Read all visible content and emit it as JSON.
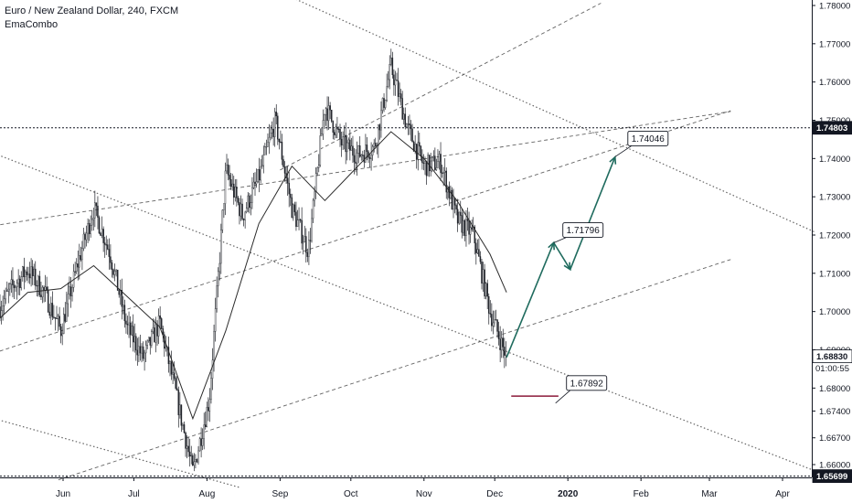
{
  "header": {
    "symbol_title": "Euro / New Zealand Dollar, 240, FXCM",
    "indicator": "EmaCombo"
  },
  "colors": {
    "price_candles": "#1f2229",
    "ema_line": "#2b2b2b",
    "trend_lines": "#4a4a4a",
    "forecast_arrow": "#1f6b5e",
    "target_line": "#8b1a3a",
    "axis_text": "#131722",
    "label_bg_dark": "#131722",
    "label_text_light": "#ffffff"
  },
  "chart_data": {
    "type": "line",
    "title": "Euro / New Zealand Dollar, 240, FXCM",
    "xlabel": "",
    "ylabel": "",
    "x_tick_labels": [
      "Jun",
      "Jul",
      "Aug",
      "Sep",
      "Oct",
      "Nov",
      "Dec",
      "2020",
      "Feb",
      "Mar",
      "Apr"
    ],
    "y_tick_labels": [
      "1.78000",
      "1.77000",
      "1.76000",
      "1.75000",
      "1.74000",
      "1.73000",
      "1.72000",
      "1.71000",
      "1.70000",
      "1.69000",
      "1.68000",
      "1.67400",
      "1.66700",
      "1.66000"
    ],
    "y_ticks": [
      1.78,
      1.77,
      1.76,
      1.75,
      1.74,
      1.73,
      1.72,
      1.71,
      1.7,
      1.69,
      1.68,
      1.674,
      1.667,
      1.66
    ],
    "ylim": [
      1.6545,
      1.7815
    ],
    "grid": false,
    "price_labels": {
      "horizontal_level": "1.74803",
      "current_price": "1.68830",
      "countdown": "01:00:55",
      "low_level": "1.65699"
    },
    "horizontal_levels": [
      1.74803,
      1.65699
    ],
    "series": [
      {
        "name": "",
        "x": [
          "2019-05-03",
          "2019-05-10",
          "2019-05-17",
          "2019-05-24",
          "2019-05-31",
          "2019-06-07",
          "2019-06-14",
          "2019-06-21",
          "2019-06-28",
          "2019-07-05",
          "2019-07-12",
          "2019-07-19",
          "2019-07-26",
          "2019-08-02",
          "2019-08-09",
          "2019-08-16",
          "2019-08-23",
          "2019-08-30",
          "2019-09-06",
          "2019-09-13",
          "2019-09-20",
          "2019-09-27",
          "2019-10-04",
          "2019-10-11",
          "2019-10-18",
          "2019-10-25",
          "2019-11-01",
          "2019-11-08",
          "2019-11-15",
          "2019-11-22",
          "2019-11-29",
          "2019-12-06"
        ],
        "values": [
          1.699,
          1.706,
          1.711,
          1.705,
          1.695,
          1.712,
          1.727,
          1.715,
          1.696,
          1.688,
          1.697,
          1.678,
          1.658,
          1.677,
          1.737,
          1.725,
          1.735,
          1.75,
          1.727,
          1.716,
          1.754,
          1.744,
          1.741,
          1.743,
          1.764,
          1.748,
          1.738,
          1.739,
          1.724,
          1.72,
          1.7,
          1.688
        ]
      },
      {
        "name": "EmaCombo",
        "x": [
          "2019-05-03",
          "2019-05-17",
          "2019-05-31",
          "2019-06-14",
          "2019-06-28",
          "2019-07-12",
          "2019-07-26",
          "2019-08-09",
          "2019-08-23",
          "2019-09-06",
          "2019-09-20",
          "2019-10-04",
          "2019-10-18",
          "2019-11-01",
          "2019-11-15",
          "2019-11-29",
          "2019-12-06"
        ],
        "values": [
          1.697,
          1.705,
          1.706,
          1.712,
          1.704,
          1.696,
          1.672,
          1.695,
          1.723,
          1.738,
          1.729,
          1.738,
          1.747,
          1.74,
          1.729,
          1.715,
          1.705
        ]
      }
    ],
    "forecast_path": {
      "x": [
        "2019-12-06",
        "2019-12-26",
        "2020-01-02",
        "2020-01-21"
      ],
      "values": [
        1.688,
        1.718,
        1.711,
        1.7404
      ]
    },
    "annotations": [
      {
        "label": "1.74046",
        "x": "2020-01-21",
        "y": 1.74046
      },
      {
        "label": "1.71796",
        "x": "2019-12-26",
        "y": 1.71796
      },
      {
        "label": "1.67892",
        "x": "2019-12-26",
        "y": 1.67892
      }
    ],
    "target_segment": {
      "x": [
        "2019-12-08",
        "2019-12-28"
      ],
      "y": 1.6779
    },
    "trend_lines": [
      {
        "style": "dashed",
        "x": [
          "2019-04-30",
          "2020-03-10"
        ],
        "y": [
          1.7222,
          1.7523
        ]
      },
      {
        "style": "dashed",
        "x": [
          "2019-04-30",
          "2020-03-10"
        ],
        "y": [
          1.6886,
          1.7525
        ]
      },
      {
        "style": "dashed",
        "x": [
          "2019-05-30",
          "2020-03-10"
        ],
        "y": [
          1.656,
          1.7136
        ]
      },
      {
        "style": "dashed",
        "x": [
          "2019-09-01",
          "2020-01-15"
        ],
        "y": [
          1.737,
          1.7806
        ]
      },
      {
        "style": "dotted",
        "x": [
          "2019-04-30",
          "2020-04-15"
        ],
        "y": [
          1.742,
          1.6583
        ]
      },
      {
        "style": "dotted",
        "x": [
          "2019-07-30",
          "2020-04-15"
        ],
        "y": [
          1.7926,
          1.7207
        ]
      },
      {
        "style": "dotted",
        "x": [
          "2019-04-30",
          "2019-08-15"
        ],
        "y": [
          1.6725,
          1.654
        ]
      }
    ]
  }
}
